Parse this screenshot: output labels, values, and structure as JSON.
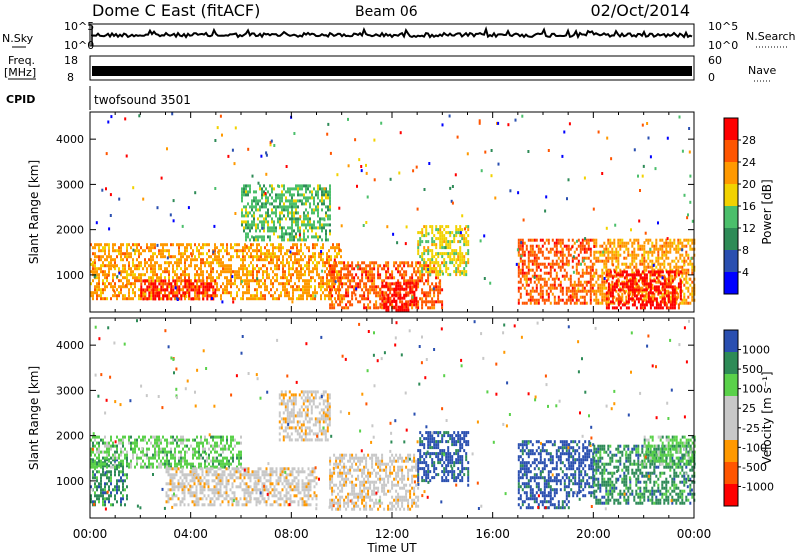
{
  "header": {
    "station": "Dome C East (fitACF)",
    "beam": "Beam 06",
    "date": "02/Oct/2014"
  },
  "top_panels": {
    "nsky_label": "N.Sky",
    "nsky_ticks": [
      "10^5",
      "10^0"
    ],
    "nsearch_label": "N.Search",
    "freq_label_1": "Freq.",
    "freq_label_2": "[MHz]",
    "freq_ticks_left": [
      "18",
      "8"
    ],
    "nave_label": "Nave",
    "nave_ticks_right": [
      "60",
      "0"
    ],
    "cpid_label": "CPID",
    "cpid_value": "twofsound 3501"
  },
  "colors": {
    "ground_scatter": "#c8c8c8",
    "power_scale": [
      "#0000ff",
      "#2a4fb0",
      "#2e8b57",
      "#4bbf6b",
      "#f2d200",
      "#ff9900",
      "#ff5500",
      "#ff0000"
    ],
    "velocity_scale": [
      "#ff0000",
      "#ff5500",
      "#ff9900",
      "#c8c8c8",
      "#c8c8c8",
      "#5ad14a",
      "#2e8b57",
      "#2a4fb0"
    ]
  },
  "chart_data": [
    {
      "type": "heatmap",
      "name": "power",
      "ylabel": "Slant Range [km]",
      "yticks": [
        "4000",
        "3000",
        "2000",
        "1000"
      ],
      "xticks": [
        "00:00",
        "04:00",
        "08:00",
        "12:00",
        "16:00",
        "20:00",
        "00:00"
      ],
      "colorbar_label": "Power [dB]",
      "colorbar_ticks": [
        "28",
        "24",
        "20",
        "16",
        "12",
        "8",
        "4"
      ],
      "ylim": [
        180,
        4600
      ],
      "x_hours": [
        0,
        24
      ],
      "echo_regions": [
        {
          "x": [
            0,
            10
          ],
          "range": [
            500,
            1700
          ],
          "level": "20"
        },
        {
          "x": [
            2,
            5
          ],
          "range": [
            500,
            900
          ],
          "level": "28"
        },
        {
          "x": [
            6,
            9.5
          ],
          "range": [
            1800,
            3000
          ],
          "level": "12"
        },
        {
          "x": [
            9.5,
            14
          ],
          "range": [
            300,
            1300
          ],
          "level": "24"
        },
        {
          "x": [
            11.5,
            13
          ],
          "range": [
            250,
            850
          ],
          "level": "28"
        },
        {
          "x": [
            13,
            15
          ],
          "range": [
            1000,
            2100
          ],
          "level": "16"
        },
        {
          "x": [
            17,
            20
          ],
          "range": [
            400,
            1800
          ],
          "level": "24"
        },
        {
          "x": [
            20,
            24
          ],
          "range": [
            400,
            1800
          ],
          "level": "20"
        },
        {
          "x": [
            20.5,
            23.5
          ],
          "range": [
            300,
            1100
          ],
          "level": "28"
        }
      ]
    },
    {
      "type": "heatmap",
      "name": "velocity",
      "ylabel": "Slant Range [km]",
      "yticks": [
        "4000",
        "3000",
        "2000",
        "1000"
      ],
      "xticks": [
        "00:00",
        "04:00",
        "08:00",
        "12:00",
        "16:00",
        "20:00",
        "00:00"
      ],
      "xlabel": "Time UT",
      "colorbar_label": "Velocity [m s⁻¹]",
      "colorbar_ticks": [
        "1000",
        "500",
        "100",
        "25",
        "-25",
        "-100",
        "-500",
        "-1000"
      ],
      "ylim": [
        180,
        4600
      ],
      "x_hours": [
        0,
        24
      ],
      "echo_regions": [
        {
          "x": [
            0,
            1.5
          ],
          "range": [
            500,
            1500
          ],
          "level": "100"
        },
        {
          "x": [
            0,
            6
          ],
          "range": [
            1300,
            2000
          ],
          "level": "25"
        },
        {
          "x": [
            3,
            9
          ],
          "range": [
            500,
            1300
          ],
          "level": "-100"
        },
        {
          "x": [
            7.5,
            9.5
          ],
          "range": [
            1900,
            3000
          ],
          "level": "-100"
        },
        {
          "x": [
            9.5,
            13
          ],
          "range": [
            400,
            1600
          ],
          "level": "-100"
        },
        {
          "x": [
            13,
            15
          ],
          "range": [
            1000,
            2100
          ],
          "level": "500"
        },
        {
          "x": [
            17,
            19
          ],
          "range": [
            400,
            1900
          ],
          "level": "500"
        },
        {
          "x": [
            19,
            20
          ],
          "range": [
            700,
            1900
          ],
          "level": "1000"
        },
        {
          "x": [
            20,
            24
          ],
          "range": [
            500,
            1800
          ],
          "level": "100"
        },
        {
          "x": [
            22,
            24
          ],
          "range": [
            1400,
            2000
          ],
          "level": "25"
        }
      ]
    }
  ]
}
